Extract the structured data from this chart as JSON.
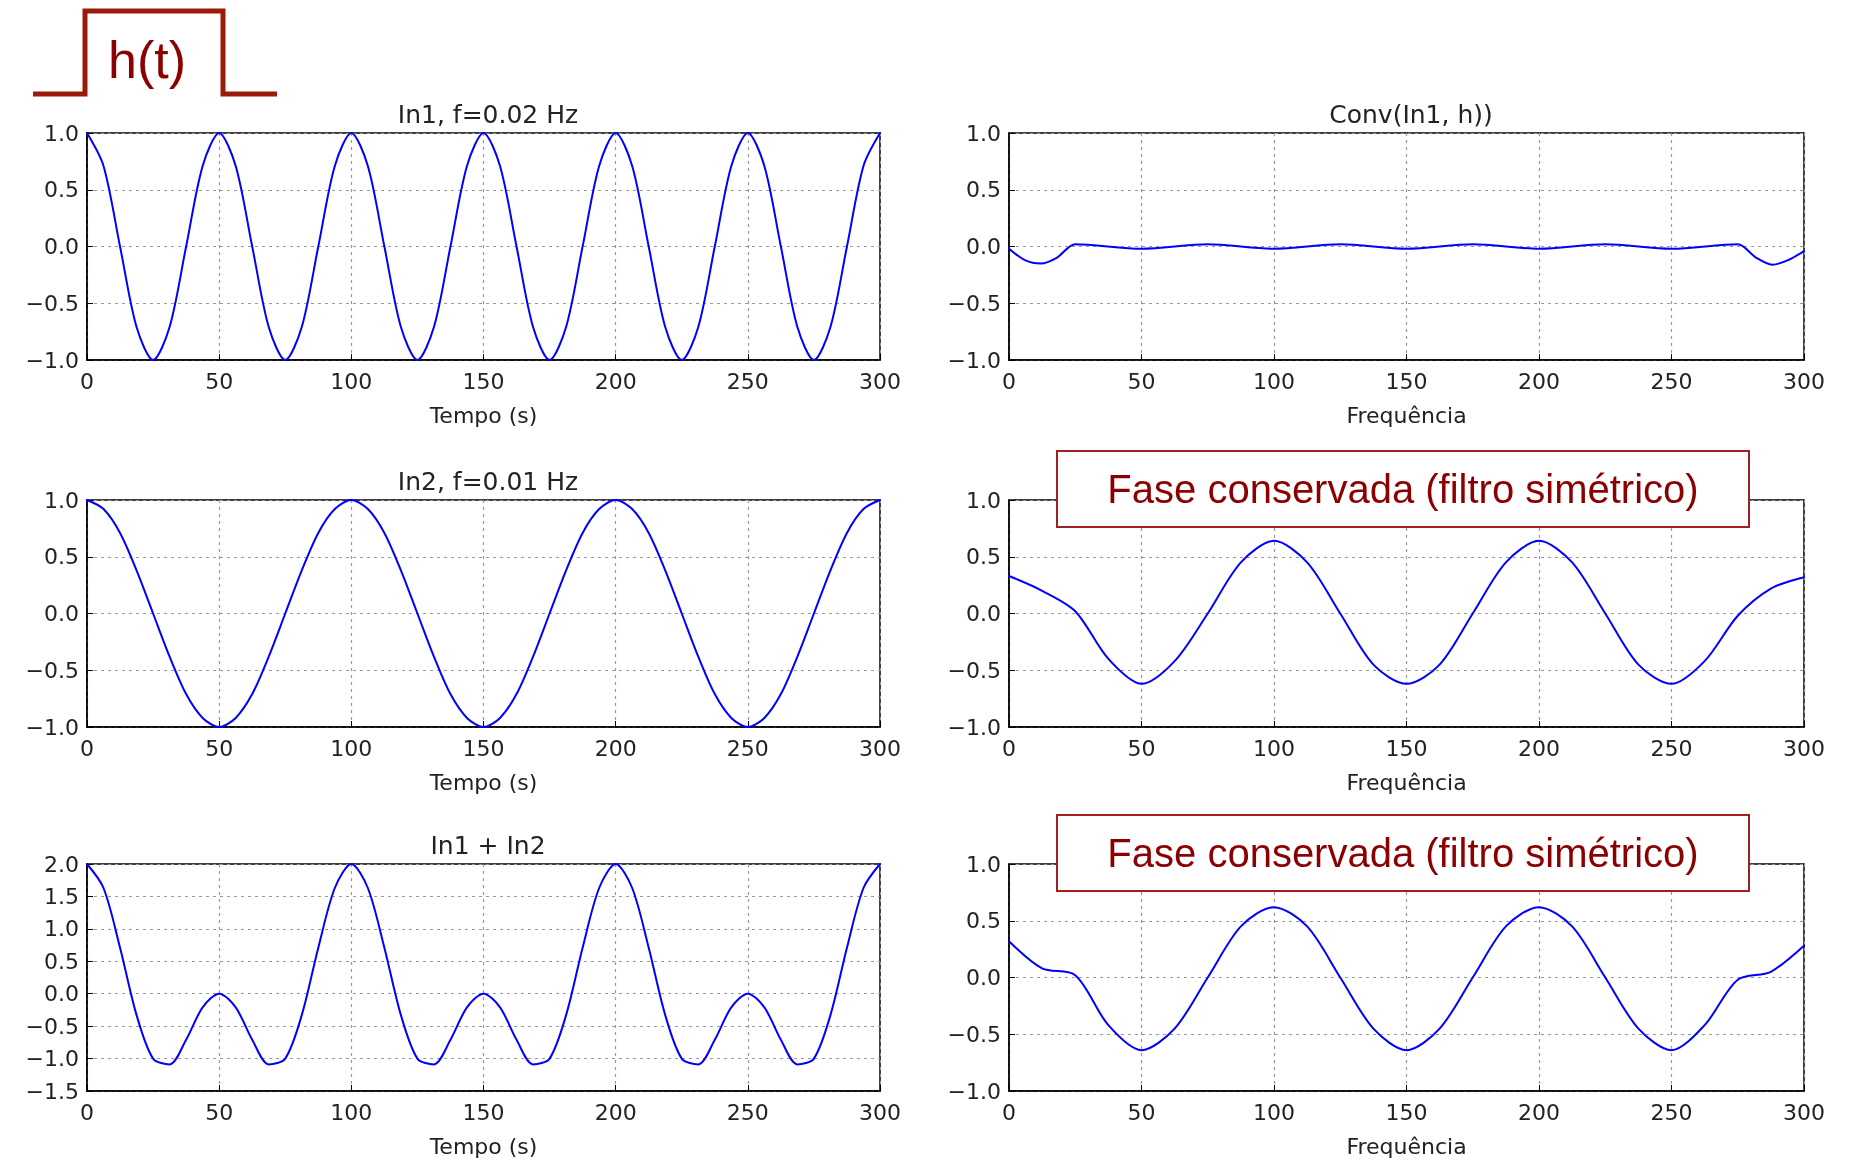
{
  "chart_data": [
    {
      "type": "line",
      "title": "In1, f=0.02 Hz",
      "xlabel": "Tempo (s)",
      "annotations": [
        "h(t)"
      ],
      "x": [
        0,
        6.25,
        12.5,
        18.75,
        25,
        31.25,
        37.5,
        43.75,
        50,
        56.25,
        62.5,
        68.75,
        75,
        81.25,
        87.5,
        93.75,
        100,
        106.25,
        112.5,
        118.75,
        125,
        131.25,
        137.5,
        143.75,
        150,
        156.25,
        162.5,
        168.75,
        175,
        181.25,
        187.5,
        193.75,
        200,
        206.25,
        212.5,
        218.75,
        225,
        231.25,
        237.5,
        243.75,
        250,
        256.25,
        262.5,
        268.75,
        275,
        281.25,
        287.5,
        293.75,
        300
      ],
      "series": [
        {
          "color": "#0000ff",
          "values": [
            1,
            0.71,
            0,
            -0.71,
            -1,
            -0.71,
            0,
            0.71,
            1,
            0.71,
            0,
            -0.71,
            -1,
            -0.71,
            0,
            0.71,
            1,
            0.71,
            0,
            -0.71,
            -1,
            -0.71,
            0,
            0.71,
            1,
            0.71,
            0,
            -0.71,
            -1,
            -0.71,
            0,
            0.71,
            1,
            0.71,
            0,
            -0.71,
            -1,
            -0.71,
            0,
            0.71,
            1,
            0.71,
            0,
            -0.71,
            -1,
            -0.71,
            0,
            0.71,
            1
          ]
        }
      ],
      "xlim": [
        0,
        300
      ],
      "xticks": [
        0,
        50,
        100,
        150,
        200,
        250,
        300
      ],
      "ylim": [
        -1,
        1
      ],
      "yticks": [
        {
          "value": -1,
          "label": "−1.0"
        },
        {
          "value": -0.5,
          "label": "−0.5"
        },
        {
          "value": 0,
          "label": "0.0"
        },
        {
          "value": 0.5,
          "label": "0.5"
        },
        {
          "value": 1,
          "label": "1.0"
        }
      ],
      "grid": true,
      "marker": "none",
      "line_style": "solid"
    },
    {
      "type": "line",
      "title": "Conv(In1, h))",
      "xlabel": "Frequência",
      "x": [
        0,
        6,
        12,
        18,
        25,
        50,
        75,
        100,
        125,
        150,
        175,
        200,
        225,
        250,
        275,
        282,
        288,
        294,
        300
      ],
      "series": [
        {
          "color": "#0000ff",
          "values": [
            -0.02,
            -0.12,
            -0.15,
            -0.1,
            0.02,
            -0.02,
            0.02,
            -0.02,
            0.02,
            -0.02,
            0.02,
            -0.02,
            0.02,
            -0.02,
            0.02,
            -0.1,
            -0.16,
            -0.12,
            -0.04
          ]
        }
      ],
      "xlim": [
        0,
        300
      ],
      "xticks": [
        0,
        50,
        100,
        150,
        200,
        250,
        300
      ],
      "ylim": [
        -1,
        1
      ],
      "yticks": [
        {
          "value": -1,
          "label": "−1.0"
        },
        {
          "value": -0.5,
          "label": "−0.5"
        },
        {
          "value": 0,
          "label": "0.0"
        },
        {
          "value": 0.5,
          "label": "0.5"
        },
        {
          "value": 1,
          "label": "1.0"
        }
      ],
      "grid": true,
      "marker": "none",
      "line_style": "solid"
    },
    {
      "type": "line",
      "title": "In2, f=0.01 Hz",
      "xlabel": "Tempo (s)",
      "x": [
        0,
        6.25,
        12.5,
        18.75,
        25,
        31.25,
        37.5,
        43.75,
        50,
        56.25,
        62.5,
        68.75,
        75,
        81.25,
        87.5,
        93.75,
        100,
        106.25,
        112.5,
        118.75,
        125,
        131.25,
        137.5,
        143.75,
        150,
        156.25,
        162.5,
        168.75,
        175,
        181.25,
        187.5,
        193.75,
        200,
        206.25,
        212.5,
        218.75,
        225,
        231.25,
        237.5,
        243.75,
        250,
        256.25,
        262.5,
        268.75,
        275,
        281.25,
        287.5,
        293.75,
        300
      ],
      "series": [
        {
          "color": "#0000ff",
          "values": [
            1,
            0.92,
            0.71,
            0.38,
            0,
            -0.38,
            -0.71,
            -0.92,
            -1,
            -0.92,
            -0.71,
            -0.38,
            0,
            0.38,
            0.71,
            0.92,
            1,
            0.92,
            0.71,
            0.38,
            0,
            -0.38,
            -0.71,
            -0.92,
            -1,
            -0.92,
            -0.71,
            -0.38,
            0,
            0.38,
            0.71,
            0.92,
            1,
            0.92,
            0.71,
            0.38,
            0,
            -0.38,
            -0.71,
            -0.92,
            -1,
            -0.92,
            -0.71,
            -0.38,
            0,
            0.38,
            0.71,
            0.92,
            1
          ]
        }
      ],
      "xlim": [
        0,
        300
      ],
      "xticks": [
        0,
        50,
        100,
        150,
        200,
        250,
        300
      ],
      "ylim": [
        -1,
        1
      ],
      "yticks": [
        {
          "value": -1,
          "label": "−1.0"
        },
        {
          "value": -0.5,
          "label": "−0.5"
        },
        {
          "value": 0,
          "label": "0.0"
        },
        {
          "value": 0.5,
          "label": "0.5"
        },
        {
          "value": 1,
          "label": "1.0"
        }
      ],
      "grid": true,
      "marker": "none",
      "line_style": "solid"
    },
    {
      "type": "line",
      "xlabel": "Frequência",
      "annotations": [
        "Fase conservada (filtro simétrico)"
      ],
      "x": [
        0,
        12.5,
        25,
        37.5,
        50,
        62.5,
        75,
        87.5,
        100,
        112.5,
        125,
        137.5,
        150,
        162.5,
        175,
        187.5,
        200,
        212.5,
        225,
        237.5,
        250,
        262.5,
        275,
        287.5,
        300
      ],
      "series": [
        {
          "color": "#0000ff",
          "values": [
            0.33,
            0.2,
            0.02,
            -0.4,
            -0.62,
            -0.42,
            0,
            0.45,
            0.64,
            0.45,
            0,
            -0.45,
            -0.62,
            -0.45,
            0,
            0.45,
            0.64,
            0.45,
            0,
            -0.45,
            -0.62,
            -0.42,
            -0.02,
            0.22,
            0.32
          ]
        }
      ],
      "xlim": [
        0,
        300
      ],
      "xticks": [
        0,
        50,
        100,
        150,
        200,
        250,
        300
      ],
      "ylim": [
        -1,
        1
      ],
      "yticks": [
        {
          "value": -1,
          "label": "−1.0"
        },
        {
          "value": -0.5,
          "label": "−0.5"
        },
        {
          "value": 0,
          "label": "0.0"
        },
        {
          "value": 0.5,
          "label": "0.5"
        },
        {
          "value": 1,
          "label": "1.0"
        }
      ],
      "grid": true,
      "marker": "none",
      "line_style": "solid"
    },
    {
      "type": "line",
      "title": "In1 + In2",
      "xlabel": "Tempo (s)",
      "x": [
        0,
        6.25,
        12.5,
        18.75,
        25,
        31.25,
        37.5,
        43.75,
        50,
        56.25,
        62.5,
        68.75,
        75,
        81.25,
        87.5,
        93.75,
        100,
        106.25,
        112.5,
        118.75,
        125,
        131.25,
        137.5,
        143.75,
        150,
        156.25,
        162.5,
        168.75,
        175,
        181.25,
        187.5,
        193.75,
        200,
        206.25,
        212.5,
        218.75,
        225,
        231.25,
        237.5,
        243.75,
        250,
        256.25,
        262.5,
        268.75,
        275,
        281.25,
        287.5,
        293.75,
        300
      ],
      "series": [
        {
          "color": "#0000ff",
          "values": [
            2,
            1.63,
            0.71,
            -0.33,
            -1,
            -1.09,
            -0.71,
            -0.21,
            0,
            -0.21,
            -0.71,
            -1.09,
            -1,
            -0.33,
            0.71,
            1.63,
            2,
            1.63,
            0.71,
            -0.33,
            -1,
            -1.09,
            -0.71,
            -0.21,
            0,
            -0.21,
            -0.71,
            -1.09,
            -1,
            -0.33,
            0.71,
            1.63,
            2,
            1.63,
            0.71,
            -0.33,
            -1,
            -1.09,
            -0.71,
            -0.21,
            0,
            -0.21,
            -0.71,
            -1.09,
            -1,
            -0.33,
            0.71,
            1.63,
            2
          ]
        }
      ],
      "xlim": [
        0,
        300
      ],
      "xticks": [
        0,
        50,
        100,
        150,
        200,
        250,
        300
      ],
      "ylim": [
        -1.5,
        2
      ],
      "yticks": [
        {
          "value": -1.5,
          "label": "−1.5"
        },
        {
          "value": -1,
          "label": "−1.0"
        },
        {
          "value": -0.5,
          "label": "−0.5"
        },
        {
          "value": 0,
          "label": "0.0"
        },
        {
          "value": 0.5,
          "label": "0.5"
        },
        {
          "value": 1,
          "label": "1.0"
        },
        {
          "value": 1.5,
          "label": "1.5"
        },
        {
          "value": 2,
          "label": "2.0"
        }
      ],
      "grid": true,
      "marker": "none",
      "line_style": "solid"
    },
    {
      "type": "line",
      "xlabel": "Frequência",
      "annotations": [
        "Fase conservada (filtro simétrico)"
      ],
      "x": [
        0,
        12.5,
        25,
        37.5,
        50,
        62.5,
        75,
        87.5,
        100,
        112.5,
        125,
        137.5,
        150,
        162.5,
        175,
        187.5,
        200,
        212.5,
        225,
        237.5,
        250,
        262.5,
        275,
        287.5,
        300
      ],
      "series": [
        {
          "color": "#0000ff",
          "values": [
            0.32,
            0.08,
            0.02,
            -0.42,
            -0.64,
            -0.45,
            0,
            0.45,
            0.62,
            0.45,
            0,
            -0.45,
            -0.64,
            -0.45,
            0,
            0.45,
            0.62,
            0.45,
            0,
            -0.45,
            -0.64,
            -0.42,
            -0.02,
            0.05,
            0.28
          ]
        }
      ],
      "xlim": [
        0,
        300
      ],
      "xticks": [
        0,
        50,
        100,
        150,
        200,
        250,
        300
      ],
      "ylim": [
        -1,
        1
      ],
      "yticks": [
        {
          "value": -1,
          "label": "−1.0"
        },
        {
          "value": -0.5,
          "label": "−0.5"
        },
        {
          "value": 0,
          "label": "0.0"
        },
        {
          "value": 0.5,
          "label": "0.5"
        },
        {
          "value": 1,
          "label": "1.0"
        }
      ],
      "grid": true,
      "marker": "none",
      "line_style": "solid"
    }
  ]
}
